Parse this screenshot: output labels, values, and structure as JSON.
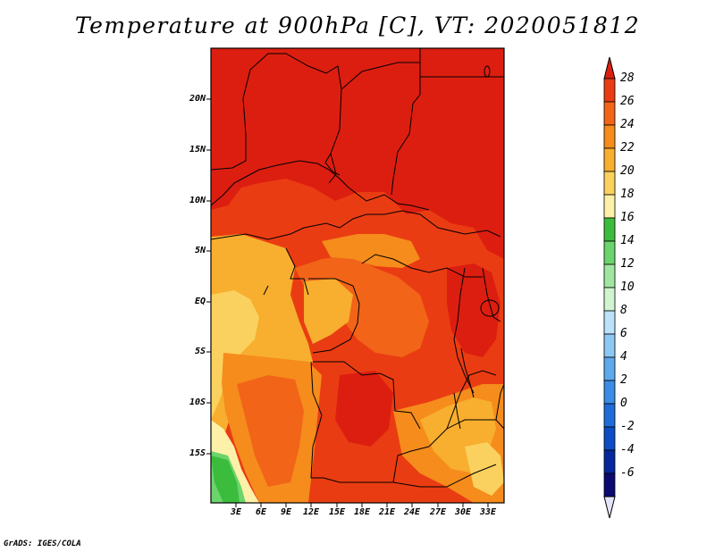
{
  "title": "Temperature at 900hPa [C], VT: 2020051812",
  "credit": "GrADS: IGES/COLA",
  "map": {
    "lat_labels": [
      "20N",
      "15N",
      "10N",
      "5N",
      "EQ",
      "5S",
      "10S",
      "15S"
    ],
    "lon_labels": [
      "3E",
      "6E",
      "9E",
      "12E",
      "15E",
      "18E",
      "21E",
      "24E",
      "27E",
      "30E",
      "33E"
    ]
  },
  "colorbar": {
    "labels": [
      "28",
      "26",
      "24",
      "22",
      "20",
      "18",
      "16",
      "14",
      "12",
      "10",
      "8",
      "6",
      "4",
      "2",
      "0",
      "-2",
      "-4",
      "-6"
    ],
    "colors": [
      "#dc1e10",
      "#ea3c12",
      "#f26418",
      "#f58c1c",
      "#f8ae2e",
      "#fad15e",
      "#fdf0a8",
      "#3cbc3c",
      "#6cd46c",
      "#a0e6a0",
      "#d0f4d0",
      "#bce2fa",
      "#8cc8f4",
      "#5ea8ec",
      "#3a8ce4",
      "#1e6cd8",
      "#0c4cc4",
      "#06289c",
      "#0a0a70",
      "#e4e4f8"
    ]
  }
}
